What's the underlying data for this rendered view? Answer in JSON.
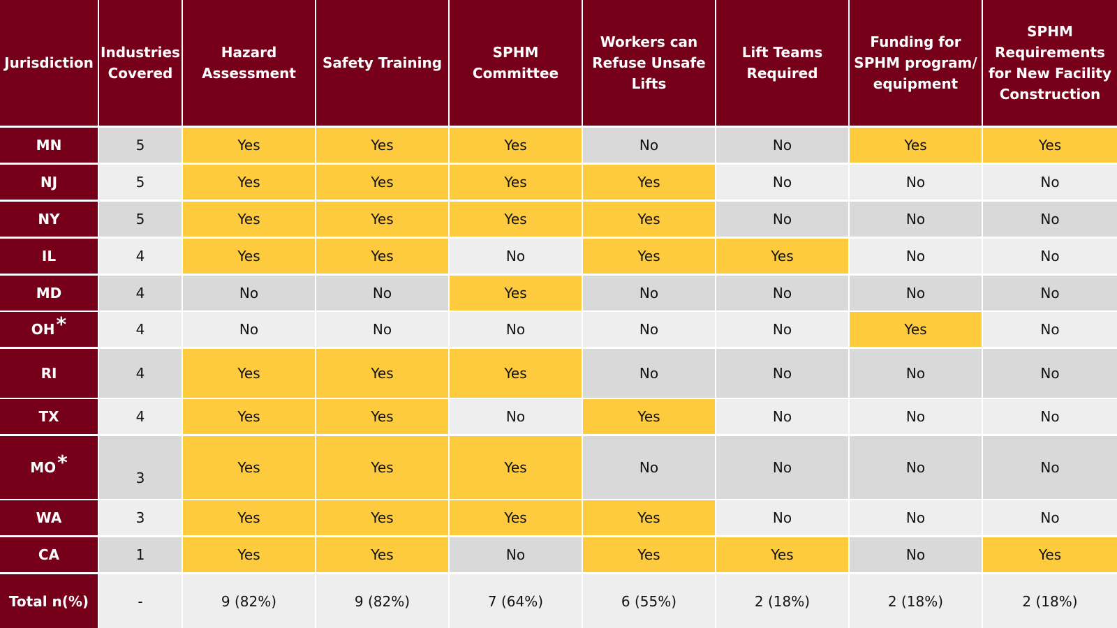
{
  "colors": {
    "header_bg": "#76001a",
    "yes_bg": "#fecb3f",
    "no_bg_odd": "#d9d9d9",
    "no_bg_even": "#eeeeee"
  },
  "headers": [
    "Jurisdiction",
    "Industries Covered",
    "Hazard Assessment",
    "Safety Training",
    "SPHM Committee",
    "Workers can Refuse Unsafe Lifts",
    "Lift Teams Required",
    "Funding for SPHM program/ equipment",
    "SPHM Requirements for New Facility Construction"
  ],
  "rows": [
    {
      "jurisdiction": "MN",
      "asterisk": "",
      "industries": "5",
      "values": [
        "Yes",
        "Yes",
        "Yes",
        "No",
        "No",
        "Yes",
        "Yes"
      ]
    },
    {
      "jurisdiction": "NJ",
      "asterisk": "",
      "industries": "5",
      "values": [
        "Yes",
        "Yes",
        "Yes",
        "Yes",
        "No",
        "No",
        "No"
      ]
    },
    {
      "jurisdiction": "NY",
      "asterisk": "",
      "industries": "5",
      "values": [
        "Yes",
        "Yes",
        "Yes",
        "Yes",
        "No",
        "No",
        "No"
      ]
    },
    {
      "jurisdiction": "IL",
      "asterisk": "",
      "industries": "4",
      "values": [
        "Yes",
        "Yes",
        "No",
        "Yes",
        "Yes",
        "No",
        "No"
      ]
    },
    {
      "jurisdiction": "MD",
      "asterisk": "",
      "industries": "4",
      "values": [
        "No",
        "No",
        "Yes",
        "No",
        "No",
        "No",
        "No"
      ]
    },
    {
      "jurisdiction": "OH",
      "asterisk": "*",
      "industries": "4",
      "values": [
        "No",
        "No",
        "No",
        "No",
        "No",
        "Yes",
        "No"
      ]
    },
    {
      "jurisdiction": "RI",
      "asterisk": "",
      "industries": "4",
      "values": [
        "Yes",
        "Yes",
        "Yes",
        "No",
        "No",
        "No",
        "No"
      ]
    },
    {
      "jurisdiction": "TX",
      "asterisk": "",
      "industries": "4",
      "values": [
        "Yes",
        "Yes",
        "No",
        "Yes",
        "No",
        "No",
        "No"
      ]
    },
    {
      "jurisdiction": "MO",
      "asterisk": "*",
      "industries": "3",
      "values": [
        "Yes",
        "Yes",
        "Yes",
        "No",
        "No",
        "No",
        "No"
      ]
    },
    {
      "jurisdiction": "WA",
      "asterisk": "",
      "industries": "3",
      "values": [
        "Yes",
        "Yes",
        "Yes",
        "Yes",
        "No",
        "No",
        "No"
      ]
    },
    {
      "jurisdiction": "CA",
      "asterisk": "",
      "industries": "1",
      "values": [
        "Yes",
        "Yes",
        "No",
        "Yes",
        "Yes",
        "No",
        "Yes"
      ]
    }
  ],
  "total": {
    "label": "Total n(%)",
    "industries": "-",
    "values": [
      "9 (82%)",
      "9 (82%)",
      "7 (64%)",
      "6 (55%)",
      "2 (18%)",
      "2 (18%)",
      "2 (18%)"
    ]
  }
}
